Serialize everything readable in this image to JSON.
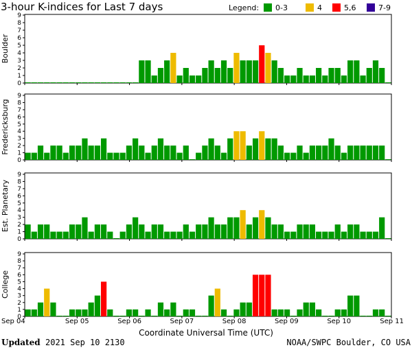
{
  "chart_data": {
    "type": "bar",
    "title": "3-hour K-indices for Last 7 days",
    "legend": {
      "label": "Legend:",
      "placement": "top-right",
      "entries": [
        {
          "label": "0-3",
          "color": "#009900"
        },
        {
          "label": "4",
          "color": "#eebb00"
        },
        {
          "label": "5,6",
          "color": "#ff0000"
        },
        {
          "label": "7-9",
          "color": "#330099"
        }
      ]
    },
    "xlabel": "Coordinate Universal Time (UTC)",
    "x_ticks": [
      "Sep 04",
      "Sep 05",
      "Sep 06",
      "Sep 07",
      "Sep 08",
      "Sep 09",
      "Sep 10",
      "Sep 11"
    ],
    "y_ticks": [
      "0",
      "1",
      "2",
      "3",
      "4",
      "5",
      "6",
      "7",
      "8",
      "9"
    ],
    "ylim": [
      0,
      9
    ],
    "grid": false,
    "series": [
      {
        "name": "Boulder",
        "values": [
          0,
          0,
          0,
          0,
          0,
          0,
          0,
          0,
          0,
          0,
          0,
          0,
          0,
          0,
          0,
          0,
          0,
          0,
          3,
          3,
          1,
          2,
          3,
          4,
          1,
          2,
          1,
          1,
          2,
          3,
          2,
          3,
          2,
          4,
          3,
          3,
          3,
          5,
          4,
          3,
          2,
          1,
          1,
          2,
          1,
          1,
          2,
          1,
          2,
          2,
          1,
          3,
          3,
          1,
          2,
          3,
          2,
          0
        ]
      },
      {
        "name": "Fredericksburg",
        "values": [
          1,
          1,
          2,
          1,
          2,
          2,
          1,
          2,
          2,
          3,
          2,
          2,
          3,
          1,
          1,
          1,
          2,
          3,
          2,
          1,
          2,
          3,
          2,
          2,
          1,
          2,
          0,
          1,
          2,
          3,
          2,
          1,
          3,
          4,
          4,
          2,
          3,
          4,
          3,
          3,
          2,
          1,
          1,
          2,
          1,
          2,
          2,
          2,
          3,
          2,
          1,
          2,
          2,
          2,
          2,
          2,
          2,
          0
        ]
      },
      {
        "name": "Est. Planetary",
        "values": [
          2,
          1,
          2,
          2,
          1,
          1,
          1,
          2,
          2,
          3,
          1,
          2,
          2,
          1,
          0,
          1,
          2,
          3,
          2,
          1,
          2,
          2,
          1,
          1,
          1,
          2,
          1,
          2,
          2,
          3,
          2,
          2,
          3,
          3,
          4,
          2,
          3,
          4,
          3,
          2,
          2,
          1,
          1,
          2,
          2,
          2,
          1,
          1,
          1,
          2,
          1,
          2,
          2,
          1,
          1,
          1,
          3,
          0
        ]
      },
      {
        "name": "College",
        "values": [
          1,
          1,
          2,
          4,
          2,
          0,
          0,
          1,
          1,
          1,
          2,
          3,
          5,
          1,
          0,
          0,
          1,
          1,
          0,
          1,
          0,
          2,
          1,
          2,
          0,
          1,
          1,
          0,
          0,
          3,
          4,
          1,
          0,
          1,
          2,
          2,
          6,
          6,
          6,
          1,
          1,
          1,
          0,
          1,
          2,
          2,
          1,
          0,
          0,
          1,
          1,
          3,
          3,
          0,
          0,
          1,
          1,
          0
        ]
      }
    ]
  },
  "footer": {
    "updated_label": "Updated",
    "updated_value": "2021 Sep 10 2130",
    "source": "NOAA/SWPC Boulder, CO USA"
  }
}
